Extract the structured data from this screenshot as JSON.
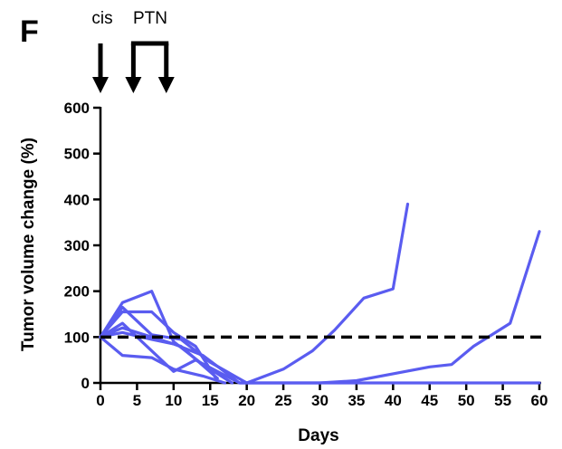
{
  "panel_label": "F",
  "treatments": {
    "cis_label": "cis",
    "ptn_label": "PTN",
    "cis_day": 0,
    "ptn_days": [
      4.5,
      9
    ]
  },
  "colors": {
    "series": "#5a5cf0",
    "reference": "#000000",
    "axis": "#000000"
  },
  "chart_data": {
    "type": "line",
    "title": "",
    "xlabel": "Days",
    "ylabel": "Tumor volume change (%)",
    "xlim": [
      0,
      60
    ],
    "ylim": [
      0,
      600
    ],
    "xticks": [
      0,
      5,
      10,
      15,
      20,
      25,
      30,
      35,
      40,
      45,
      50,
      55,
      60
    ],
    "yticks": [
      0,
      100,
      200,
      300,
      400,
      500,
      600
    ],
    "grid": false,
    "legend": "none",
    "reference_line": {
      "y": 100,
      "style": "dashed"
    },
    "series": [
      {
        "x": [
          0,
          3,
          7,
          11,
          15,
          20,
          25,
          29,
          32,
          36,
          40,
          42
        ],
        "values": [
          100,
          165,
          105,
          95,
          45,
          0,
          30,
          70,
          115,
          185,
          205,
          390
        ]
      },
      {
        "x": [
          0,
          3,
          7,
          10,
          14,
          19,
          25,
          30,
          35,
          40,
          45,
          48,
          51,
          56,
          60
        ],
        "values": [
          100,
          110,
          95,
          85,
          60,
          0,
          0,
          0,
          5,
          20,
          35,
          40,
          80,
          130,
          330
        ]
      },
      {
        "x": [
          0,
          3,
          7,
          10,
          14,
          18
        ],
        "values": [
          100,
          175,
          200,
          90,
          40,
          0
        ]
      },
      {
        "x": [
          0,
          3,
          7,
          10,
          14,
          17
        ],
        "values": [
          100,
          60,
          55,
          30,
          15,
          0
        ]
      },
      {
        "x": [
          0,
          3,
          7,
          10,
          13,
          16
        ],
        "values": [
          100,
          155,
          155,
          110,
          80,
          5
        ]
      },
      {
        "x": [
          0,
          3,
          6,
          10,
          13,
          19,
          25,
          30,
          35,
          40,
          45,
          50,
          55,
          60
        ],
        "values": [
          100,
          130,
          85,
          25,
          50,
          0,
          0,
          0,
          0,
          0,
          0,
          0,
          0,
          0
        ]
      },
      {
        "x": [
          0,
          3,
          7,
          11,
          16
        ],
        "values": [
          100,
          120,
          100,
          80,
          10
        ]
      }
    ]
  }
}
